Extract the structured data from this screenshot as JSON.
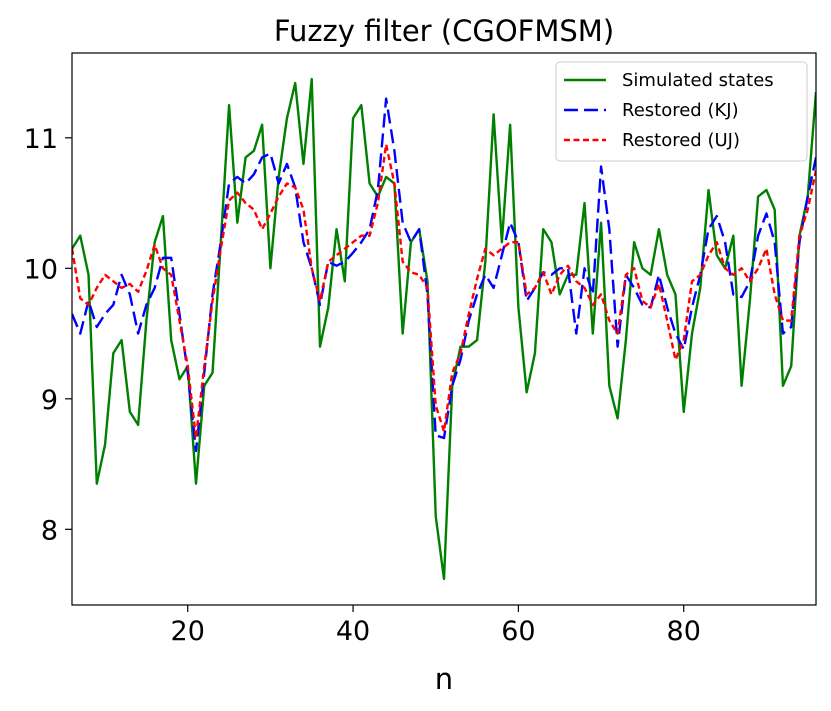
{
  "chart_data": {
    "type": "line",
    "title": "Fuzzy filter (CGOFMSM)",
    "xlabel": "n",
    "ylabel": "",
    "xlim": [
      6,
      96
    ],
    "ylim": [
      7.42,
      11.65
    ],
    "xticks": [
      20,
      40,
      60,
      80
    ],
    "yticks": [
      8,
      9,
      10,
      11
    ],
    "xtick_labels": [
      "20",
      "40",
      "60",
      "80"
    ],
    "ytick_labels": [
      "8",
      "9",
      "10",
      "11"
    ],
    "grid": false,
    "legend_position": "top-right",
    "x": [
      6,
      7,
      8,
      9,
      10,
      11,
      12,
      13,
      14,
      15,
      16,
      17,
      18,
      19,
      20,
      21,
      22,
      23,
      24,
      25,
      26,
      27,
      28,
      29,
      30,
      31,
      32,
      33,
      34,
      35,
      36,
      37,
      38,
      39,
      40,
      41,
      42,
      43,
      44,
      45,
      46,
      47,
      48,
      49,
      50,
      51,
      52,
      53,
      54,
      55,
      56,
      57,
      58,
      59,
      60,
      61,
      62,
      63,
      64,
      65,
      66,
      67,
      68,
      69,
      70,
      71,
      72,
      73,
      74,
      75,
      76,
      77,
      78,
      79,
      80,
      81,
      82,
      83,
      84,
      85,
      86,
      87,
      88,
      89,
      90,
      91,
      92,
      93,
      94,
      95,
      96
    ],
    "series": [
      {
        "name": "Simulated states",
        "color": "#008000",
        "dash": "solid",
        "values": [
          10.15,
          10.25,
          9.95,
          8.35,
          8.65,
          9.35,
          9.45,
          8.9,
          8.8,
          9.6,
          10.2,
          10.4,
          9.45,
          9.15,
          9.25,
          8.35,
          9.1,
          9.2,
          10.2,
          11.25,
          10.35,
          10.85,
          10.9,
          11.1,
          10.0,
          10.7,
          11.15,
          11.42,
          10.8,
          11.45,
          9.4,
          9.7,
          10.3,
          9.9,
          11.15,
          11.25,
          10.65,
          10.55,
          10.7,
          10.65,
          9.5,
          10.2,
          10.3,
          9.9,
          8.1,
          7.62,
          9.1,
          9.4,
          9.4,
          9.45,
          10.05,
          11.18,
          10.2,
          11.1,
          9.7,
          9.05,
          9.35,
          10.3,
          10.2,
          9.8,
          9.95,
          9.95,
          10.5,
          9.5,
          10.35,
          9.1,
          8.85,
          9.45,
          10.2,
          10.0,
          9.95,
          10.3,
          9.95,
          9.8,
          8.9,
          9.5,
          9.85,
          10.6,
          10.1,
          10.0,
          10.25,
          9.1,
          9.75,
          10.55,
          10.6,
          10.45,
          9.1,
          9.25,
          10.25,
          10.55,
          11.35
        ]
      },
      {
        "name": "Restored (KJ)",
        "color": "#0000ff",
        "dash": "long",
        "values": [
          9.65,
          9.5,
          9.75,
          9.55,
          9.65,
          9.72,
          9.95,
          9.8,
          9.5,
          9.72,
          9.85,
          10.08,
          10.08,
          9.65,
          9.2,
          8.6,
          9.2,
          9.8,
          10.2,
          10.65,
          10.7,
          10.65,
          10.72,
          10.85,
          10.88,
          10.65,
          10.8,
          10.62,
          10.2,
          10.0,
          9.72,
          10.05,
          10.02,
          10.05,
          10.12,
          10.2,
          10.3,
          10.6,
          11.3,
          10.9,
          10.35,
          10.2,
          10.3,
          9.8,
          8.72,
          8.7,
          9.1,
          9.3,
          9.6,
          9.8,
          9.95,
          9.85,
          10.1,
          10.35,
          10.2,
          9.75,
          9.85,
          9.97,
          9.95,
          10.0,
          10.0,
          9.5,
          10.0,
          9.8,
          10.78,
          10.3,
          9.4,
          9.95,
          9.85,
          9.72,
          9.7,
          9.95,
          9.7,
          9.5,
          9.38,
          9.7,
          9.95,
          10.3,
          10.4,
          10.2,
          9.8,
          9.78,
          9.9,
          10.25,
          10.42,
          10.2,
          9.5,
          9.55,
          10.2,
          10.55,
          10.85
        ]
      },
      {
        "name": "Restored (UJ)",
        "color": "#ff0000",
        "dash": "short",
        "values": [
          10.15,
          9.77,
          9.72,
          9.85,
          9.95,
          9.9,
          9.85,
          9.88,
          9.82,
          9.98,
          10.18,
          10.0,
          9.95,
          9.6,
          9.25,
          8.7,
          9.25,
          9.75,
          10.15,
          10.52,
          10.58,
          10.5,
          10.45,
          10.3,
          10.42,
          10.55,
          10.65,
          10.62,
          10.45,
          10.0,
          9.75,
          10.05,
          10.1,
          10.15,
          10.2,
          10.25,
          10.25,
          10.5,
          10.95,
          10.65,
          10.05,
          9.97,
          9.95,
          9.85,
          8.95,
          8.75,
          9.2,
          9.35,
          9.65,
          9.92,
          10.15,
          10.1,
          10.15,
          10.2,
          10.2,
          9.8,
          9.85,
          9.97,
          9.8,
          9.95,
          10.02,
          9.9,
          9.85,
          9.72,
          9.8,
          9.6,
          9.5,
          9.95,
          10.0,
          9.75,
          9.7,
          9.88,
          9.6,
          9.3,
          9.45,
          9.9,
          9.95,
          10.1,
          10.2,
          10.0,
          9.95,
          10.0,
          9.9,
          10.0,
          10.15,
          9.8,
          9.6,
          9.6,
          10.25,
          10.45,
          10.75
        ]
      }
    ]
  }
}
